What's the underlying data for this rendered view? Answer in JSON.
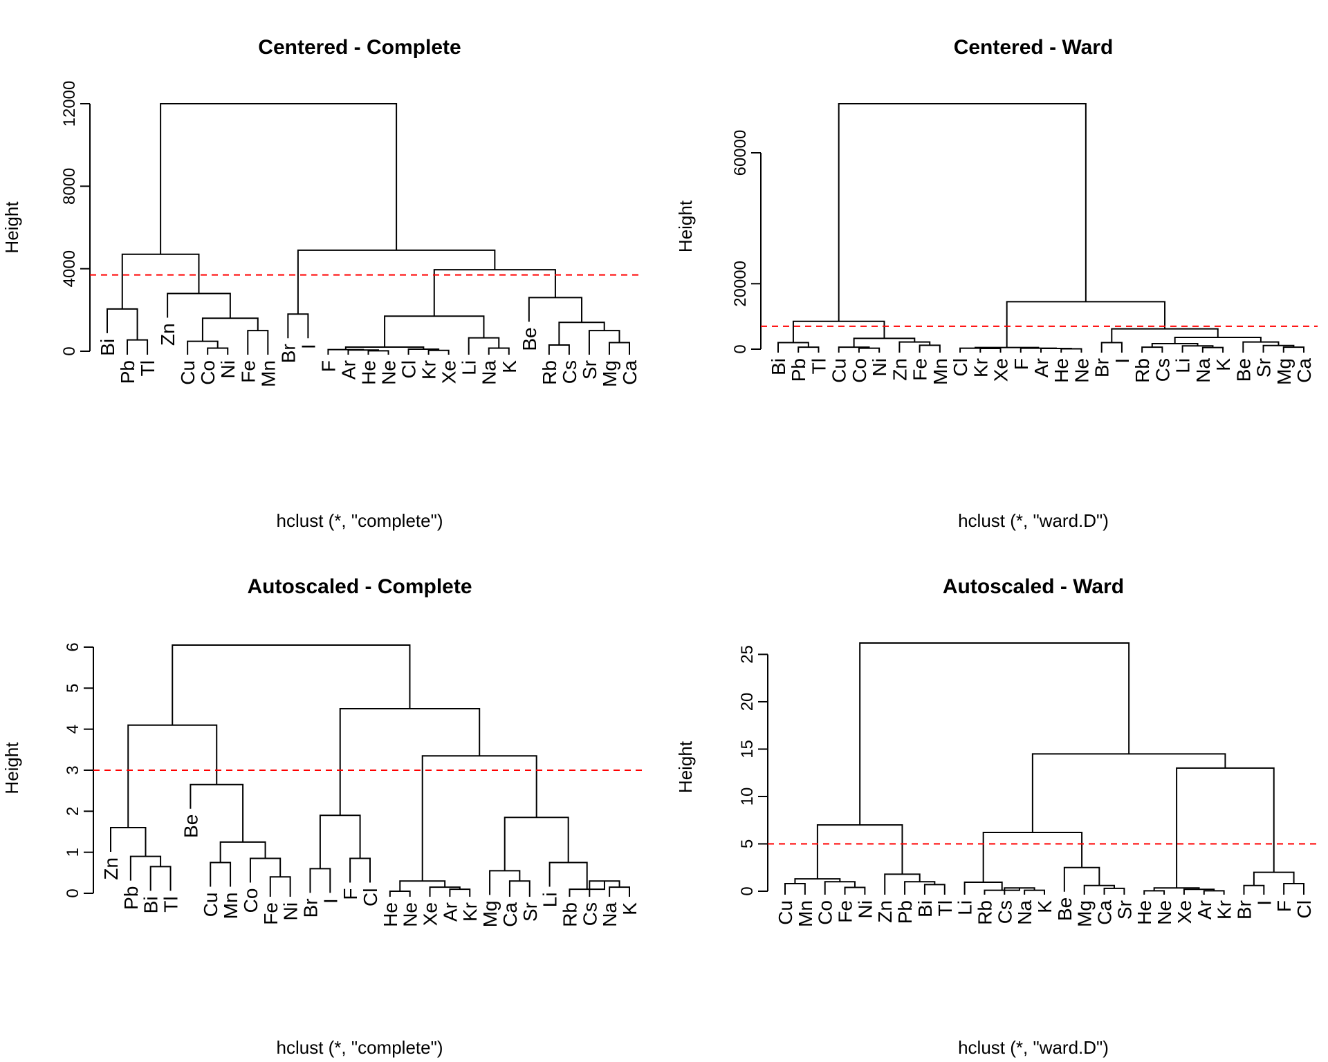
{
  "chart_data": [
    {
      "type": "dendrogram",
      "title": "Centered - Complete",
      "xlabel": "hclust (*, \"complete\")",
      "ylabel": "Height",
      "ylim": [
        0,
        12000
      ],
      "yticks": [
        0,
        4000,
        8000,
        12000
      ],
      "cut_height": 3700,
      "cut_color": "#ff0000",
      "leaves": [
        "Bi",
        "Pb",
        "Tl",
        "Zn",
        "Cu",
        "Co",
        "Ni",
        "Fe",
        "Mn",
        "Br",
        "I",
        "F",
        "Ar",
        "He",
        "Ne",
        "Cl",
        "Kr",
        "Xe",
        "Li",
        "Na",
        "K",
        "Be",
        "Rb",
        "Cs",
        "Sr",
        "Mg",
        "Ca"
      ],
      "merges": [
        {
          "left": "Pb",
          "right": "Tl",
          "height": 550
        },
        {
          "left": "Bi",
          "right": "m1",
          "height": 2050
        },
        {
          "left": "Co",
          "right": "Ni",
          "height": 150
        },
        {
          "left": "Cu",
          "right": "m3",
          "height": 480
        },
        {
          "left": "Fe",
          "right": "Mn",
          "height": 1000
        },
        {
          "left": "m4",
          "right": "m5",
          "height": 1600
        },
        {
          "left": "Zn",
          "right": "m6",
          "height": 2800
        },
        {
          "left": "m2",
          "right": "m7",
          "height": 4700
        },
        {
          "left": "Br",
          "right": "I",
          "height": 1800
        },
        {
          "left": "He",
          "right": "Ne",
          "height": 20
        },
        {
          "left": "Ar",
          "right": "m10",
          "height": 60
        },
        {
          "left": "F",
          "right": "m11",
          "height": 80
        },
        {
          "left": "Kr",
          "right": "Xe",
          "height": 40
        },
        {
          "left": "Cl",
          "right": "m13",
          "height": 100
        },
        {
          "left": "m12",
          "right": "m14",
          "height": 200
        },
        {
          "left": "Na",
          "right": "K",
          "height": 150
        },
        {
          "left": "Li",
          "right": "m16",
          "height": 650
        },
        {
          "left": "m15",
          "right": "m17",
          "height": 1700
        },
        {
          "left": "Mg",
          "right": "Ca",
          "height": 420
        },
        {
          "left": "Sr",
          "right": "m19",
          "height": 1000
        },
        {
          "left": "Rb",
          "right": "Cs",
          "height": 300
        },
        {
          "left": "m21",
          "right": "m20",
          "height": 1400
        },
        {
          "left": "Be",
          "right": "m22",
          "height": 2600
        },
        {
          "left": "m18",
          "right": "m23",
          "height": 3950
        },
        {
          "left": "m9",
          "right": "m24",
          "height": 4900
        },
        {
          "left": "m8",
          "right": "m25",
          "height": 12000
        }
      ]
    },
    {
      "type": "dendrogram",
      "title": "Centered - Ward",
      "xlabel": "hclust (*, \"ward.D\")",
      "ylabel": "Height",
      "ylim": [
        0,
        75000
      ],
      "yticks": [
        0,
        20000,
        60000
      ],
      "cut_height": 7000,
      "cut_color": "#ff0000",
      "leaves": [
        "Bi",
        "Pb",
        "Tl",
        "Cu",
        "Co",
        "Ni",
        "Zn",
        "Fe",
        "Mn",
        "Cl",
        "Kr",
        "Xe",
        "F",
        "Ar",
        "He",
        "Ne",
        "Br",
        "I",
        "Rb",
        "Cs",
        "Li",
        "Na",
        "K",
        "Be",
        "Sr",
        "Mg",
        "Ca"
      ],
      "merges": [
        {
          "left": "Pb",
          "right": "Tl",
          "height": 600
        },
        {
          "left": "Bi",
          "right": "m1",
          "height": 2000
        },
        {
          "left": "Co",
          "right": "Ni",
          "height": 300
        },
        {
          "left": "Cu",
          "right": "m3",
          "height": 600
        },
        {
          "left": "Fe",
          "right": "Mn",
          "height": 1200
        },
        {
          "left": "Zn",
          "right": "m5",
          "height": 2200
        },
        {
          "left": "m4",
          "right": "m6",
          "height": 3300
        },
        {
          "left": "m2",
          "right": "m7",
          "height": 8500
        },
        {
          "left": "Kr",
          "right": "Xe",
          "height": 200
        },
        {
          "left": "Cl",
          "right": "m9",
          "height": 300
        },
        {
          "left": "He",
          "right": "Ne",
          "height": 100
        },
        {
          "left": "Ar",
          "right": "m11",
          "height": 200
        },
        {
          "left": "F",
          "right": "m12",
          "height": 300
        },
        {
          "left": "m10",
          "right": "m13",
          "height": 500
        },
        {
          "left": "Br",
          "right": "I",
          "height": 2000
        },
        {
          "left": "Rb",
          "right": "Cs",
          "height": 600
        },
        {
          "left": "Na",
          "right": "K",
          "height": 500
        },
        {
          "left": "Li",
          "right": "m17",
          "height": 1000
        },
        {
          "left": "m16",
          "right": "m18",
          "height": 1700
        },
        {
          "left": "Mg",
          "right": "Ca",
          "height": 600
        },
        {
          "left": "Sr",
          "right": "m20",
          "height": 1100
        },
        {
          "left": "Be",
          "right": "m21",
          "height": 2200
        },
        {
          "left": "m19",
          "right": "m22",
          "height": 3600
        },
        {
          "left": "m15",
          "right": "m23",
          "height": 6200
        },
        {
          "left": "m14",
          "right": "m24",
          "height": 14500
        },
        {
          "left": "m8",
          "right": "m25",
          "height": 75000
        }
      ]
    },
    {
      "type": "dendrogram",
      "title": "Autoscaled - Complete",
      "xlabel": "hclust (*, \"complete\")",
      "ylabel": "Height",
      "ylim": [
        0,
        6.1
      ],
      "yticks": [
        0,
        1,
        2,
        3,
        4,
        5,
        6
      ],
      "cut_height": 3,
      "cut_color": "#ff0000",
      "leaves": [
        "Zn",
        "Pb",
        "Bi",
        "Tl",
        "Be",
        "Cu",
        "Mn",
        "Co",
        "Fe",
        "Ni",
        "Br",
        "I",
        "F",
        "Cl",
        "He",
        "Ne",
        "Xe",
        "Ar",
        "Kr",
        "Mg",
        "Ca",
        "Sr",
        "Li",
        "Rb",
        "Cs",
        "Na",
        "K"
      ],
      "merges": [
        {
          "left": "Bi",
          "right": "Tl",
          "height": 0.65
        },
        {
          "left": "Pb",
          "right": "m1",
          "height": 0.9
        },
        {
          "left": "Zn",
          "right": "m2",
          "height": 1.6
        },
        {
          "left": "Cu",
          "right": "Mn",
          "height": 0.75
        },
        {
          "left": "Fe",
          "right": "Ni",
          "height": 0.4
        },
        {
          "left": "Co",
          "right": "m5",
          "height": 0.85
        },
        {
          "left": "m4",
          "right": "m6",
          "height": 1.25
        },
        {
          "left": "Be",
          "right": "m7",
          "height": 2.65
        },
        {
          "left": "m3",
          "right": "m8",
          "height": 4.1
        },
        {
          "left": "Br",
          "right": "I",
          "height": 0.6
        },
        {
          "left": "F",
          "right": "Cl",
          "height": 0.85
        },
        {
          "left": "m10",
          "right": "m11",
          "height": 1.9
        },
        {
          "left": "He",
          "right": "Ne",
          "height": 0.05
        },
        {
          "left": "Ar",
          "right": "Kr",
          "height": 0.1
        },
        {
          "left": "Xe",
          "right": "m14",
          "height": 0.15
        },
        {
          "left": "m13",
          "right": "m15",
          "height": 0.3
        },
        {
          "left": "Ca",
          "right": "Sr",
          "height": 0.3
        },
        {
          "left": "Mg",
          "right": "m17",
          "height": 0.55
        },
        {
          "left": "Na",
          "right": "K",
          "height": 0.15
        },
        {
          "left": "Cs",
          "right": "m19",
          "height": 0.3
        },
        {
          "left": "Rb",
          "right": "m20",
          "height": 0.1
        },
        {
          "left": "Li",
          "right": "m21",
          "height": 0.75
        },
        {
          "left": "m18",
          "right": "m22",
          "height": 1.85
        },
        {
          "left": "m16",
          "right": "m23",
          "height": 3.35
        },
        {
          "left": "m12",
          "right": "m24",
          "height": 4.5
        },
        {
          "left": "m9",
          "right": "m25",
          "height": 6.05
        }
      ]
    },
    {
      "type": "dendrogram",
      "title": "Autoscaled - Ward",
      "xlabel": "hclust (*, \"ward.D\")",
      "ylabel": "Height",
      "ylim": [
        0,
        26.2
      ],
      "yticks": [
        0,
        5,
        10,
        15,
        20,
        25
      ],
      "cut_height": 5,
      "cut_color": "#ff0000",
      "leaves": [
        "Cu",
        "Mn",
        "Co",
        "Fe",
        "Ni",
        "Zn",
        "Pb",
        "Bi",
        "Tl",
        "Li",
        "Rb",
        "Cs",
        "Na",
        "K",
        "Be",
        "Mg",
        "Ca",
        "Sr",
        "He",
        "Ne",
        "Xe",
        "Ar",
        "Kr",
        "Br",
        "I",
        "F",
        "Cl"
      ],
      "merges": [
        {
          "left": "Cu",
          "right": "Mn",
          "height": 0.8
        },
        {
          "left": "Fe",
          "right": "Ni",
          "height": 0.4
        },
        {
          "left": "Co",
          "right": "m2",
          "height": 1.0
        },
        {
          "left": "m1",
          "right": "m3",
          "height": 1.3
        },
        {
          "left": "Bi",
          "right": "Tl",
          "height": 0.7
        },
        {
          "left": "Pb",
          "right": "m5",
          "height": 1.0
        },
        {
          "left": "Zn",
          "right": "m6",
          "height": 1.8
        },
        {
          "left": "m4",
          "right": "m7",
          "height": 7.0
        },
        {
          "left": "Na",
          "right": "K",
          "height": 0.1
        },
        {
          "left": "Cs",
          "right": "m9",
          "height": 0.35
        },
        {
          "left": "Rb",
          "right": "m10",
          "height": 0.1
        },
        {
          "left": "Li",
          "right": "m11",
          "height": 0.95
        },
        {
          "left": "Ca",
          "right": "Sr",
          "height": 0.3
        },
        {
          "left": "Mg",
          "right": "m13",
          "height": 0.6
        },
        {
          "left": "Be",
          "right": "m14",
          "height": 2.5
        },
        {
          "left": "m12",
          "right": "m15",
          "height": 6.2
        },
        {
          "left": "He",
          "right": "Ne",
          "height": 0.05
        },
        {
          "left": "Ar",
          "right": "Kr",
          "height": 0.05
        },
        {
          "left": "Xe",
          "right": "m18",
          "height": 0.2
        },
        {
          "left": "m17",
          "right": "m19",
          "height": 0.35
        },
        {
          "left": "Br",
          "right": "I",
          "height": 0.6
        },
        {
          "left": "F",
          "right": "Cl",
          "height": 0.8
        },
        {
          "left": "m21",
          "right": "m22",
          "height": 2.0
        },
        {
          "left": "m20",
          "right": "m23",
          "height": 13.0
        },
        {
          "left": "m16",
          "right": "m24",
          "height": 14.5
        },
        {
          "left": "m8",
          "right": "m25",
          "height": 26.2
        }
      ]
    }
  ]
}
